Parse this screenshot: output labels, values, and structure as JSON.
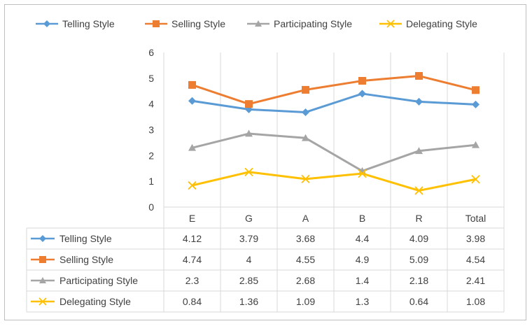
{
  "chart_data": {
    "type": "line",
    "categories": [
      "E",
      "G",
      "A",
      "B",
      "R",
      "Total"
    ],
    "series": [
      {
        "name": "Telling Style",
        "values": [
          4.12,
          3.79,
          3.68,
          4.4,
          4.09,
          3.98
        ],
        "color": "#5b9bd5",
        "marker": "diamond"
      },
      {
        "name": "Selling Style",
        "values": [
          4.74,
          4,
          4.55,
          4.9,
          5.09,
          4.54
        ],
        "color": "#ed7d31",
        "marker": "square"
      },
      {
        "name": "Participating Style",
        "values": [
          2.3,
          2.85,
          2.68,
          1.4,
          2.18,
          2.41
        ],
        "color": "#a5a5a5",
        "marker": "triangle"
      },
      {
        "name": "Delegating Style",
        "values": [
          0.84,
          1.36,
          1.09,
          1.3,
          0.64,
          1.08
        ],
        "color": "#ffc000",
        "marker": "x"
      }
    ],
    "table_values": [
      [
        "4.12",
        "3.79",
        "3.68",
        "4.4",
        "4.09",
        "3.98"
      ],
      [
        "4.74",
        "4",
        "4.55",
        "4.9",
        "5.09",
        "4.54"
      ],
      [
        "2.3",
        "2.85",
        "2.68",
        "1.4",
        "2.18",
        "2.41"
      ],
      [
        "0.84",
        "1.36",
        "1.09",
        "1.3",
        "0.64",
        "1.08"
      ]
    ],
    "yticks": [
      "0",
      "1",
      "2",
      "3",
      "4",
      "5",
      "6"
    ],
    "ylim": [
      0,
      6
    ],
    "legend": "top",
    "grid": "vertical",
    "data_table": true
  }
}
